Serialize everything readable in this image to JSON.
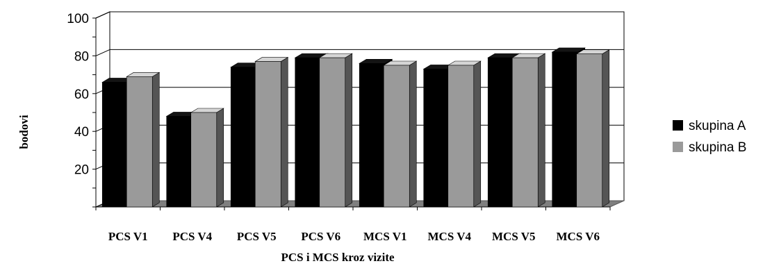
{
  "chart_data": {
    "type": "bar",
    "title": "",
    "xlabel": "PCS i MCS kroz vizite",
    "ylabel": "bodovi",
    "ylim": [
      0,
      100
    ],
    "yticks": [
      20,
      40,
      60,
      80,
      100
    ],
    "grid": true,
    "legend_position": "right",
    "categories": [
      "PCS  V1",
      "PCS  V4",
      "PCS  V5",
      "PCS  V6",
      "MCS  V1",
      "MCS  V4",
      "MCS  V5",
      "MCS  V6"
    ],
    "series": [
      {
        "name": "skupina A",
        "color": "#000000",
        "values": [
          66,
          48,
          74,
          79,
          76,
          73,
          79,
          82
        ]
      },
      {
        "name": "skupina B",
        "color": "#9a9a9a",
        "values": [
          69,
          50,
          77,
          79,
          75,
          75,
          79,
          81
        ]
      }
    ]
  }
}
